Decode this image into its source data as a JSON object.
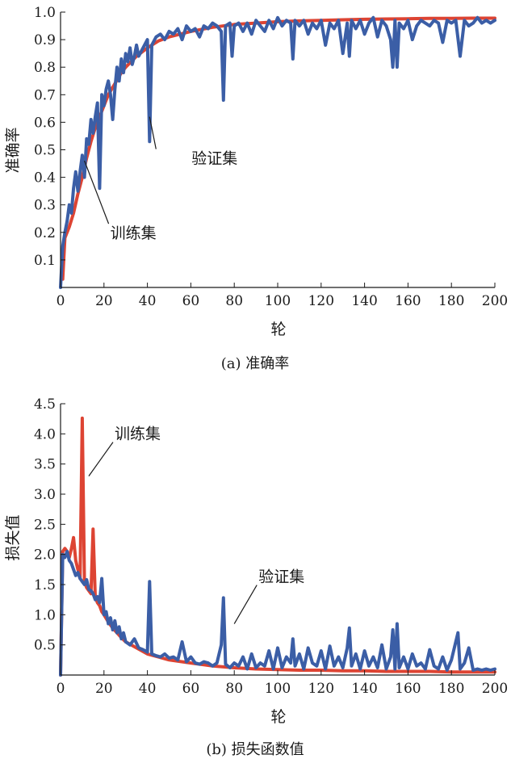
{
  "colors": {
    "train": "#dd4433",
    "val": "#3b5ea6",
    "axis": "#1a1a1a"
  },
  "chart_data": [
    {
      "type": "line",
      "caption": "(a) 准确率",
      "xlabel": "轮",
      "ylabel": "准确率",
      "xlim": [
        0,
        200
      ],
      "ylim": [
        0,
        1.0
      ],
      "xticks": [
        "0",
        "20",
        "40",
        "60",
        "80",
        "100",
        "120",
        "140",
        "160",
        "180",
        "200"
      ],
      "yticks": [
        "0.1",
        "0.2",
        "0.3",
        "0.4",
        "0.5",
        "0.6",
        "0.7",
        "0.8",
        "0.9",
        "1.0"
      ],
      "grid": false,
      "annotations": [
        {
          "text": "验证集",
          "series": "val",
          "at": [
            41,
            0.62
          ]
        },
        {
          "text": "训练集",
          "series": "train",
          "at": [
            11,
            0.46
          ]
        }
      ],
      "series": [
        {
          "key": "train",
          "x": [
            1,
            2,
            4,
            6,
            8,
            10,
            12,
            14,
            16,
            18,
            20,
            22,
            25,
            28,
            30,
            35,
            40,
            45,
            50,
            60,
            70,
            80,
            90,
            100,
            110,
            120,
            130,
            140,
            150,
            160,
            170,
            180,
            190,
            200
          ],
          "values": [
            0.03,
            0.18,
            0.22,
            0.27,
            0.34,
            0.4,
            0.47,
            0.53,
            0.58,
            0.62,
            0.66,
            0.7,
            0.74,
            0.78,
            0.8,
            0.84,
            0.87,
            0.895,
            0.91,
            0.93,
            0.945,
            0.955,
            0.96,
            0.965,
            0.968,
            0.97,
            0.972,
            0.974,
            0.975,
            0.976,
            0.977,
            0.977,
            0.978,
            0.978
          ]
        },
        {
          "key": "val",
          "x": [
            0,
            1,
            2,
            3,
            4,
            5,
            6,
            7,
            8,
            9,
            10,
            11,
            12,
            13,
            14,
            15,
            16,
            17,
            18,
            19,
            20,
            21,
            22,
            23,
            24,
            25,
            26,
            27,
            28,
            29,
            30,
            31,
            32,
            33,
            34,
            35,
            36,
            38,
            40,
            41,
            42,
            44,
            46,
            48,
            50,
            52,
            54,
            56,
            58,
            60,
            62,
            64,
            66,
            68,
            70,
            72,
            74,
            75,
            76,
            78,
            79,
            80,
            82,
            84,
            86,
            88,
            90,
            92,
            94,
            96,
            98,
            100,
            102,
            104,
            106,
            107,
            108,
            110,
            112,
            114,
            116,
            118,
            120,
            122,
            124,
            126,
            128,
            130,
            132,
            133,
            134,
            136,
            138,
            140,
            142,
            144,
            146,
            148,
            150,
            152,
            153,
            154,
            155,
            156,
            158,
            160,
            162,
            164,
            166,
            168,
            170,
            172,
            174,
            176,
            178,
            180,
            182,
            184,
            186,
            188,
            190,
            192,
            194,
            196,
            198,
            200
          ],
          "values": [
            0.0,
            0.15,
            0.2,
            0.24,
            0.3,
            0.27,
            0.36,
            0.42,
            0.35,
            0.42,
            0.48,
            0.4,
            0.54,
            0.52,
            0.61,
            0.56,
            0.62,
            0.67,
            0.36,
            0.7,
            0.66,
            0.72,
            0.75,
            0.7,
            0.61,
            0.72,
            0.8,
            0.75,
            0.83,
            0.78,
            0.85,
            0.82,
            0.87,
            0.81,
            0.84,
            0.88,
            0.84,
            0.87,
            0.9,
            0.53,
            0.88,
            0.91,
            0.92,
            0.9,
            0.93,
            0.92,
            0.94,
            0.9,
            0.95,
            0.93,
            0.94,
            0.91,
            0.95,
            0.94,
            0.96,
            0.95,
            0.93,
            0.68,
            0.95,
            0.96,
            0.84,
            0.95,
            0.96,
            0.93,
            0.96,
            0.92,
            0.97,
            0.95,
            0.93,
            0.97,
            0.94,
            0.98,
            0.95,
            0.97,
            0.96,
            0.83,
            0.97,
            0.95,
            0.97,
            0.92,
            0.96,
            0.94,
            0.97,
            0.88,
            0.96,
            0.94,
            0.97,
            0.85,
            0.96,
            0.84,
            0.97,
            0.94,
            0.97,
            0.92,
            0.96,
            0.98,
            0.91,
            0.97,
            0.95,
            0.9,
            0.8,
            0.97,
            0.8,
            0.96,
            0.94,
            0.97,
            0.9,
            0.95,
            0.97,
            0.96,
            0.95,
            0.97,
            0.96,
            0.89,
            0.97,
            0.96,
            0.97,
            0.84,
            0.97,
            0.95,
            0.96,
            0.98,
            0.96,
            0.97,
            0.96,
            0.97
          ]
        }
      ]
    },
    {
      "type": "line",
      "caption": "(b) 损失函数值",
      "xlabel": "轮",
      "ylabel": "损失值",
      "xlim": [
        0,
        200
      ],
      "ylim": [
        0,
        4.5
      ],
      "xticks": [
        "0",
        "20",
        "40",
        "60",
        "80",
        "100",
        "120",
        "140",
        "160",
        "180",
        "200"
      ],
      "yticks": [
        "0.5",
        "1.0",
        "1.5",
        "2.0",
        "2.5",
        "3.0",
        "3.5",
        "4.0",
        "4.5"
      ],
      "grid": false,
      "annotations": [
        {
          "text": "训练集",
          "series": "train",
          "at": [
            13,
            3.3
          ]
        },
        {
          "text": "验证集",
          "series": "val",
          "at": [
            80,
            0.85
          ]
        }
      ],
      "series": [
        {
          "key": "train",
          "x": [
            0,
            1,
            2,
            3,
            4,
            5,
            6,
            7,
            8,
            9,
            10,
            11,
            12,
            13,
            14,
            15,
            16,
            17,
            18,
            19,
            20,
            22,
            24,
            26,
            28,
            30,
            35,
            40,
            45,
            50,
            60,
            70,
            80,
            90,
            100,
            110,
            120,
            130,
            140,
            150,
            160,
            170,
            180,
            190,
            200
          ],
          "values": [
            0.0,
            2.05,
            2.1,
            2.05,
            1.95,
            2.1,
            2.28,
            1.9,
            1.75,
            1.6,
            4.26,
            1.55,
            1.45,
            1.4,
            1.35,
            2.42,
            1.3,
            1.2,
            1.15,
            1.05,
            1.0,
            0.88,
            0.78,
            0.7,
            0.62,
            0.55,
            0.45,
            0.35,
            0.3,
            0.25,
            0.2,
            0.15,
            0.12,
            0.1,
            0.09,
            0.08,
            0.08,
            0.07,
            0.07,
            0.06,
            0.06,
            0.06,
            0.05,
            0.05,
            0.05
          ]
        },
        {
          "key": "val",
          "x": [
            0,
            1,
            2,
            3,
            4,
            5,
            6,
            7,
            8,
            9,
            10,
            11,
            12,
            13,
            14,
            15,
            16,
            17,
            18,
            19,
            20,
            21,
            22,
            23,
            24,
            25,
            26,
            27,
            28,
            29,
            30,
            32,
            34,
            36,
            38,
            40,
            41,
            42,
            44,
            46,
            48,
            50,
            52,
            54,
            56,
            58,
            60,
            62,
            64,
            66,
            68,
            70,
            72,
            74,
            75,
            76,
            78,
            80,
            82,
            84,
            86,
            88,
            90,
            92,
            94,
            96,
            98,
            100,
            102,
            104,
            106,
            107,
            108,
            110,
            112,
            114,
            116,
            118,
            120,
            122,
            124,
            126,
            128,
            130,
            132,
            133,
            134,
            136,
            138,
            140,
            142,
            144,
            146,
            148,
            150,
            152,
            153,
            154,
            155,
            156,
            158,
            160,
            162,
            164,
            166,
            168,
            170,
            172,
            174,
            176,
            178,
            180,
            182,
            183,
            184,
            186,
            188,
            190,
            192,
            194,
            196,
            198,
            200
          ],
          "values": [
            0.0,
            2.0,
            1.95,
            2.05,
            1.9,
            1.85,
            1.75,
            1.65,
            1.7,
            1.6,
            1.55,
            1.5,
            1.58,
            1.42,
            1.4,
            1.35,
            1.25,
            1.3,
            1.2,
            1.6,
            1.0,
            1.05,
            0.85,
            0.95,
            0.75,
            0.9,
            0.7,
            0.8,
            0.6,
            0.7,
            0.55,
            0.5,
            0.6,
            0.45,
            0.42,
            0.38,
            1.55,
            0.35,
            0.32,
            0.3,
            0.35,
            0.28,
            0.3,
            0.25,
            0.55,
            0.22,
            0.3,
            0.2,
            0.18,
            0.22,
            0.2,
            0.15,
            0.2,
            0.5,
            1.28,
            0.18,
            0.12,
            0.2,
            0.15,
            0.3,
            0.1,
            0.35,
            0.12,
            0.2,
            0.15,
            0.4,
            0.1,
            0.45,
            0.12,
            0.3,
            0.2,
            0.6,
            0.15,
            0.35,
            0.1,
            0.45,
            0.2,
            0.15,
            0.4,
            0.1,
            0.48,
            0.15,
            0.3,
            0.12,
            0.45,
            0.78,
            0.15,
            0.35,
            0.1,
            0.4,
            0.15,
            0.3,
            0.12,
            0.5,
            0.1,
            0.3,
            0.75,
            0.1,
            0.85,
            0.12,
            0.3,
            0.1,
            0.35,
            0.15,
            0.2,
            0.1,
            0.42,
            0.15,
            0.1,
            0.3,
            0.08,
            0.25,
            0.55,
            0.7,
            0.1,
            0.2,
            0.45,
            0.08,
            0.1,
            0.08,
            0.1,
            0.08,
            0.1
          ]
        }
      ]
    }
  ]
}
